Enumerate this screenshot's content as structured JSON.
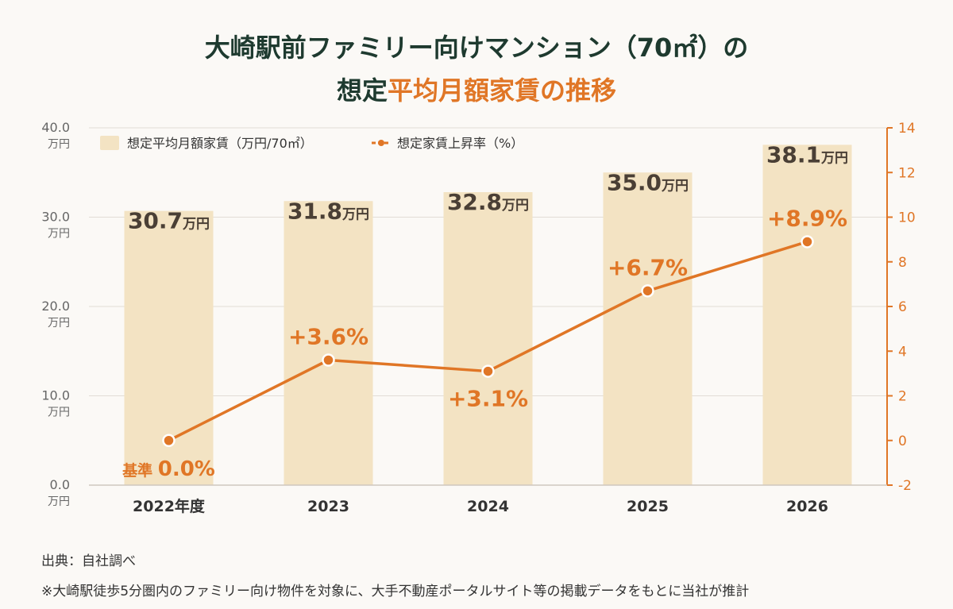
{
  "title": {
    "line1": "大崎駅前ファミリー向けマンション（70㎡）の",
    "line2_plain": "想定",
    "line2_accent": "平均月額家賃の推移"
  },
  "colors": {
    "bar": "#f3e3c3",
    "line": "#e07626",
    "bar_label": "#4a3f35",
    "title": "#1e3a2f",
    "grid": "#e2ddd6"
  },
  "chart_data": {
    "type": "bar",
    "categories": [
      "2022年度",
      "2023",
      "2024",
      "2025",
      "2026"
    ],
    "series": [
      {
        "name": "想定平均月額家賃（万円/70㎡）",
        "type": "bar",
        "axis": "left",
        "values": [
          30.7,
          31.8,
          32.8,
          35.0,
          38.1
        ],
        "labels": [
          "30.7",
          "31.8",
          "32.8",
          "35.0",
          "38.1"
        ],
        "label_unit": "万円"
      },
      {
        "name": "想定家賃上昇率（%）",
        "type": "line",
        "axis": "right",
        "values": [
          0.0,
          3.6,
          3.1,
          6.7,
          8.9
        ],
        "labels": [
          "0.0%",
          "+3.6%",
          "+3.1%",
          "+6.7%",
          "+8.9%"
        ],
        "first_label_prefix": "基準"
      }
    ],
    "y_left": {
      "ylim": [
        0,
        40
      ],
      "ticks": [
        "0.0",
        "10.0",
        "20.0",
        "30.0",
        "40.0"
      ],
      "tick_unit": "万円"
    },
    "y_right": {
      "ylim": [
        -2,
        14
      ],
      "ticks": [
        "-2",
        "0",
        "2",
        "4",
        "6",
        "8",
        "10",
        "12",
        "14"
      ]
    },
    "legend_position": "top-left",
    "grid": true
  },
  "footer": {
    "source": "出典：自社調べ",
    "note": "※大崎駅徒歩5分圏内のファミリー向け物件を対象に、大手不動産ポータルサイト等の掲載データをもとに当社が推計"
  }
}
